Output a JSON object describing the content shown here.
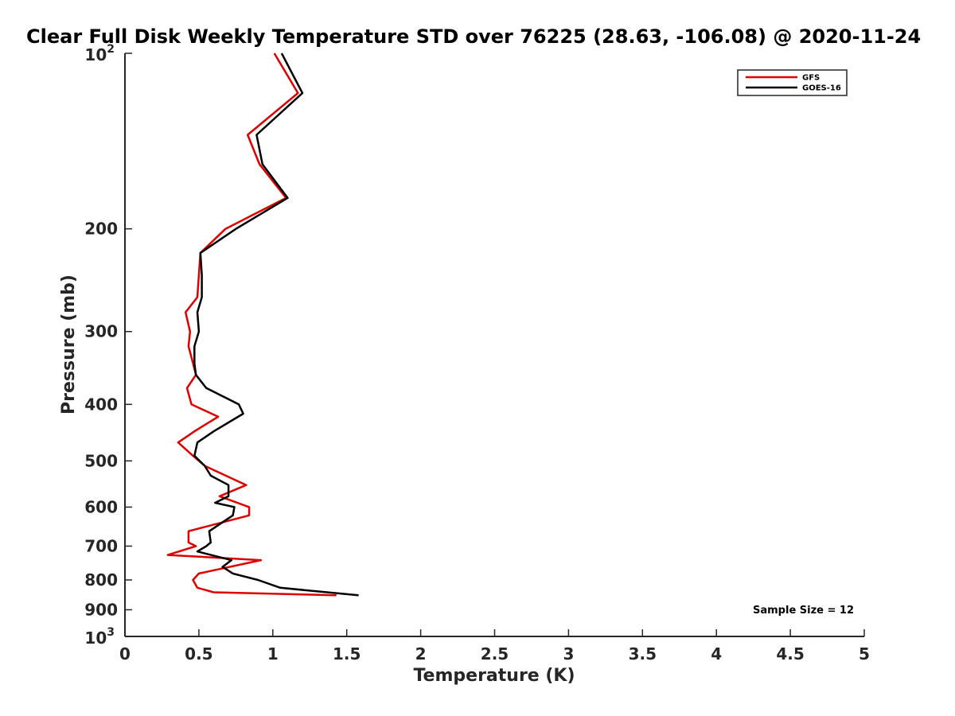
{
  "chart_data": {
    "type": "line",
    "title": "Clear Full Disk Weekly Temperature STD over 76225 (28.63, -106.08) @ 2020-11-24",
    "xlabel": "Temperature (K)",
    "ylabel": "Pressure (mb)",
    "xlim": [
      0,
      5
    ],
    "ylim": [
      100,
      1000
    ],
    "y_scale": "log",
    "y_reversed": true,
    "grid": false,
    "legend_position": "top-right",
    "x_ticks": [
      "0",
      "0.5",
      "1",
      "1.5",
      "2",
      "2.5",
      "3",
      "3.5",
      "4",
      "4.5",
      "5"
    ],
    "y_ticks": [
      {
        "value": 100,
        "base": "10",
        "exp": "2"
      },
      {
        "value": 200,
        "label": "200"
      },
      {
        "value": 300,
        "label": "300"
      },
      {
        "value": 400,
        "label": "400"
      },
      {
        "value": 500,
        "label": "500"
      },
      {
        "value": 600,
        "label": "600"
      },
      {
        "value": 700,
        "label": "700"
      },
      {
        "value": 800,
        "label": "800"
      },
      {
        "value": 900,
        "label": "900"
      },
      {
        "value": 1000,
        "base": "10",
        "exp": "3"
      }
    ],
    "annotation": "Sample Size = 12",
    "series": [
      {
        "name": "GFS",
        "color": "#dd0000",
        "points": [
          [
            1.01,
            100
          ],
          [
            1.17,
            117
          ],
          [
            0.83,
            138
          ],
          [
            0.91,
            155
          ],
          [
            1.09,
            177
          ],
          [
            0.68,
            200
          ],
          [
            0.51,
            220
          ],
          [
            0.5,
            240
          ],
          [
            0.49,
            262
          ],
          [
            0.41,
            278
          ],
          [
            0.44,
            300
          ],
          [
            0.43,
            318
          ],
          [
            0.46,
            340
          ],
          [
            0.48,
            356
          ],
          [
            0.42,
            375
          ],
          [
            0.45,
            400
          ],
          [
            0.63,
            420
          ],
          [
            0.47,
            445
          ],
          [
            0.36,
            465
          ],
          [
            0.46,
            490
          ],
          [
            0.54,
            510
          ],
          [
            0.82,
            550
          ],
          [
            0.64,
            575
          ],
          [
            0.84,
            600
          ],
          [
            0.84,
            620
          ],
          [
            0.43,
            660
          ],
          [
            0.43,
            690
          ],
          [
            0.48,
            700
          ],
          [
            0.29,
            725
          ],
          [
            0.92,
            740
          ],
          [
            0.5,
            780
          ],
          [
            0.46,
            800
          ],
          [
            0.49,
            825
          ],
          [
            0.6,
            840
          ],
          [
            1.43,
            850
          ]
        ]
      },
      {
        "name": "GOES-16",
        "color": "#000000",
        "points": [
          [
            1.06,
            100
          ],
          [
            1.2,
            117
          ],
          [
            0.89,
            138
          ],
          [
            0.93,
            155
          ],
          [
            1.1,
            177
          ],
          [
            0.75,
            200
          ],
          [
            0.51,
            220
          ],
          [
            0.52,
            240
          ],
          [
            0.52,
            262
          ],
          [
            0.49,
            278
          ],
          [
            0.5,
            300
          ],
          [
            0.47,
            318
          ],
          [
            0.47,
            340
          ],
          [
            0.48,
            356
          ],
          [
            0.55,
            375
          ],
          [
            0.77,
            400
          ],
          [
            0.8,
            415
          ],
          [
            0.6,
            445
          ],
          [
            0.49,
            465
          ],
          [
            0.47,
            490
          ],
          [
            0.54,
            510
          ],
          [
            0.58,
            530
          ],
          [
            0.7,
            550
          ],
          [
            0.7,
            575
          ],
          [
            0.61,
            590
          ],
          [
            0.74,
            600
          ],
          [
            0.73,
            620
          ],
          [
            0.57,
            660
          ],
          [
            0.58,
            690
          ],
          [
            0.55,
            700
          ],
          [
            0.49,
            715
          ],
          [
            0.72,
            740
          ],
          [
            0.66,
            760
          ],
          [
            0.73,
            780
          ],
          [
            0.9,
            800
          ],
          [
            1.05,
            825
          ],
          [
            1.58,
            850
          ]
        ]
      }
    ]
  }
}
